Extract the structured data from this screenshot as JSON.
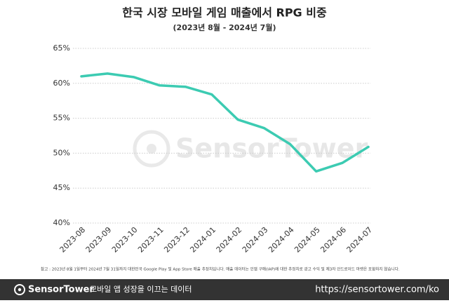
{
  "chart_data": {
    "type": "line",
    "title": "한국 시장 모바일 게임 매출에서 RPG 비중",
    "subtitle": "(2023년 8월 - 2024년 7월)",
    "categories": [
      "2023-08",
      "2023-09",
      "2023-10",
      "2023-11",
      "2023-12",
      "2024-01",
      "2024-02",
      "2024-03",
      "2024-04",
      "2024-05",
      "2024-06",
      "2024-07"
    ],
    "values": [
      61.0,
      61.4,
      60.9,
      59.7,
      59.5,
      58.4,
      54.8,
      53.6,
      51.3,
      47.4,
      48.6,
      50.9
    ],
    "color": "#3ccbb2",
    "ylim": [
      40,
      65
    ],
    "yticks": [
      {
        "value": 40,
        "label": "40%"
      },
      {
        "value": 45,
        "label": "45%"
      },
      {
        "value": 50,
        "label": "50%"
      },
      {
        "value": 55,
        "label": "55%"
      },
      {
        "value": 60,
        "label": "60%"
      },
      {
        "value": 65,
        "label": "65%"
      }
    ],
    "grid": true
  },
  "watermark": "SensorTower",
  "note": "참고 : 2023년 8월 1일부터 2024년 7월 31일까지 대한민국 Google Play 및 App Store 매출 추정치입니다. 매출 데이터는 인앱 구매(IAP)에 대한 추정치로 광고 수익 및 제3자 안드로이드 마켓은 포함하지 않습니다.",
  "footer": {
    "brand": "SensorTower",
    "tagline": "모바일 앱 성장을 이끄는 데이터",
    "url": "https://sensortower.com/ko"
  }
}
